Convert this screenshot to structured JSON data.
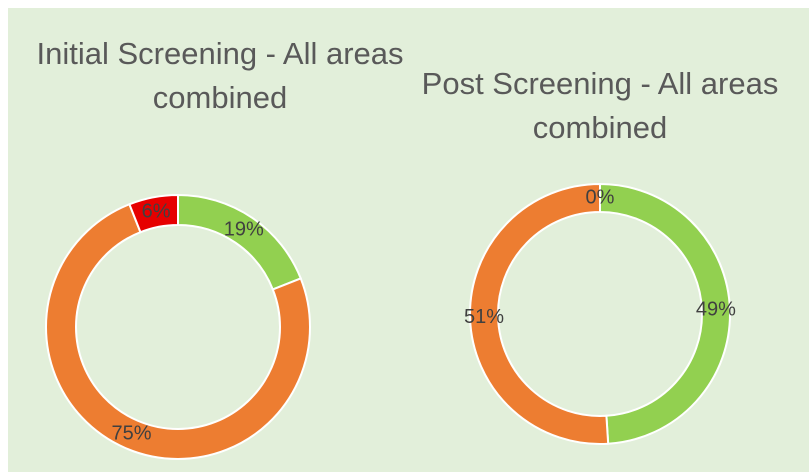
{
  "chart_data": [
    {
      "type": "pie",
      "title": "Initial Screening - All areas combined",
      "values": [
        19,
        75,
        6
      ],
      "value_labels": [
        "19%",
        "75%",
        "6%"
      ],
      "colors": [
        "#92d050",
        "#ed7d31",
        "#e60000"
      ],
      "donut": true
    },
    {
      "type": "pie",
      "title": "Post Screening - All areas combined",
      "values": [
        49,
        51,
        0
      ],
      "value_labels": [
        "49%",
        "51%",
        "0%"
      ],
      "colors": [
        "#92d050",
        "#ed7d31",
        "#e60000"
      ],
      "donut": true
    }
  ]
}
